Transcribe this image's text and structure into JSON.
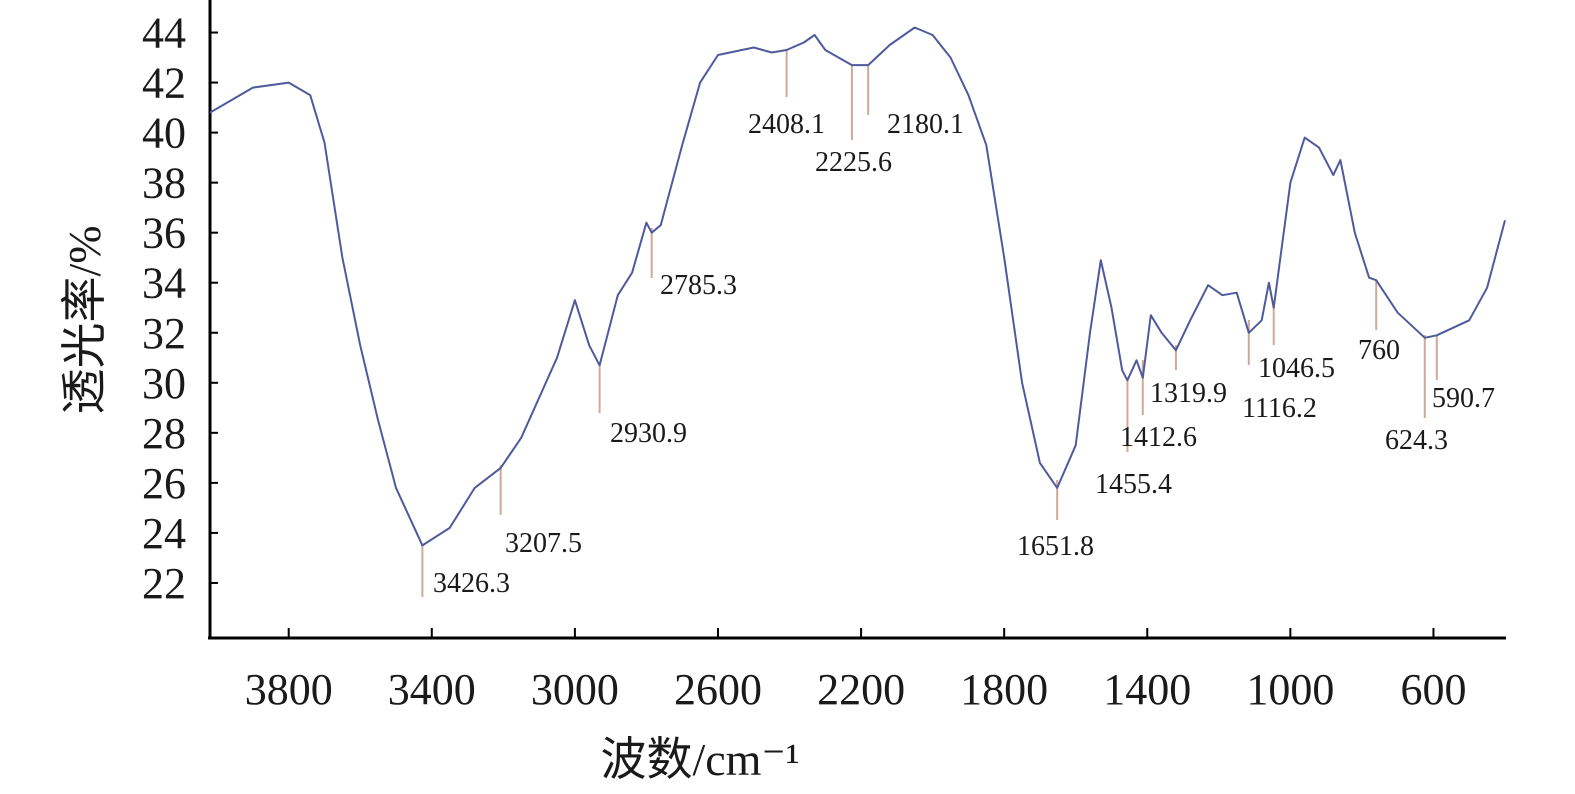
{
  "chart_data": {
    "type": "line",
    "xlabel": "波数/cm⁻¹",
    "ylabel": "透光率/%",
    "x": [
      4020,
      3900,
      3800,
      3740,
      3700,
      3650,
      3600,
      3550,
      3500,
      3426.3,
      3350,
      3280,
      3207.5,
      3150,
      3050,
      3000,
      2960,
      2930.9,
      2880,
      2840,
      2800,
      2785.3,
      2760,
      2700,
      2650,
      2600,
      2500,
      2450,
      2408.1,
      2360,
      2330,
      2300,
      2225.6,
      2180.1,
      2120,
      2050,
      2000,
      1950,
      1900,
      1850,
      1800,
      1750,
      1700,
      1651.8,
      1600,
      1560,
      1530,
      1500,
      1470,
      1455.4,
      1430,
      1412.6,
      1390,
      1360,
      1319.9,
      1280,
      1230,
      1190,
      1150,
      1116.2,
      1080,
      1060,
      1046.5,
      1000,
      960,
      920,
      880,
      860,
      820,
      780,
      760,
      700,
      624.3,
      590.7,
      500,
      450,
      400
    ],
    "series": [
      {
        "color": "#4f5a9c",
        "values": [
          40.8,
          41.8,
          42.0,
          41.5,
          39.6,
          35.0,
          31.5,
          28.5,
          25.8,
          23.5,
          24.2,
          25.8,
          26.6,
          27.8,
          31.0,
          33.3,
          31.5,
          30.7,
          33.5,
          34.4,
          36.4,
          36.0,
          36.3,
          39.5,
          42.0,
          43.1,
          43.4,
          43.2,
          43.3,
          43.6,
          43.9,
          43.3,
          42.7,
          42.7,
          43.5,
          44.2,
          43.9,
          43.0,
          41.5,
          39.5,
          35.0,
          30.0,
          26.8,
          25.8,
          27.5,
          32.0,
          34.9,
          33.0,
          30.5,
          30.1,
          30.9,
          30.2,
          32.7,
          32.0,
          31.3,
          32.5,
          33.9,
          33.5,
          33.6,
          32.0,
          32.5,
          34.0,
          33.0,
          38.0,
          39.8,
          39.4,
          38.3,
          38.9,
          36.0,
          34.2,
          34.1,
          32.8,
          31.8,
          31.9,
          32.5,
          33.8,
          36.5
        ]
      }
    ],
    "annotations": [
      3426.3,
      3207.5,
      2930.9,
      2785.3,
      2408.1,
      2225.6,
      2180.1,
      1651.8,
      1455.4,
      1412.6,
      1319.9,
      1116.2,
      1046.5,
      760,
      624.3,
      590.7
    ],
    "xlim": [
      4020,
      400
    ],
    "xticks": [
      3800,
      3400,
      3000,
      2600,
      2200,
      1800,
      1400,
      1000,
      600
    ],
    "ylim": [
      19.8,
      45.3
    ],
    "yticks": [
      22,
      24,
      26,
      28,
      30,
      32,
      34,
      36,
      38,
      40,
      42,
      44
    ]
  }
}
